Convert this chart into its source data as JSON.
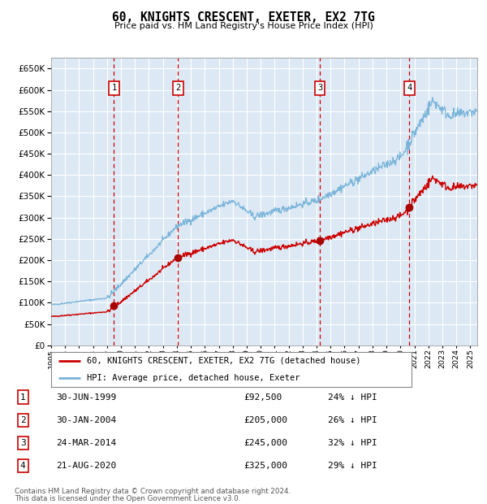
{
  "title": "60, KNIGHTS CRESCENT, EXETER, EX2 7TG",
  "subtitle": "Price paid vs. HM Land Registry's House Price Index (HPI)",
  "background_color": "#ffffff",
  "plot_bg_color": "#dce9f5",
  "grid_color": "#ffffff",
  "hpi_color": "#7ab4d8",
  "price_color": "#cc0000",
  "sale_marker_color": "#aa0000",
  "dashed_line_color": "#cc0000",
  "transactions": [
    {
      "num": 1,
      "date_str": "30-JUN-1999",
      "price": 92500,
      "pct": "24%",
      "year": 1999.5
    },
    {
      "num": 2,
      "date_str": "30-JAN-2004",
      "price": 205000,
      "pct": "26%",
      "year": 2004.08
    },
    {
      "num": 3,
      "date_str": "24-MAR-2014",
      "price": 245000,
      "pct": "32%",
      "year": 2014.23
    },
    {
      "num": 4,
      "date_str": "21-AUG-2020",
      "price": 325000,
      "pct": "29%",
      "year": 2020.64
    }
  ],
  "legend_label_price": "60, KNIGHTS CRESCENT, EXETER, EX2 7TG (detached house)",
  "legend_label_hpi": "HPI: Average price, detached house, Exeter",
  "footer_line1": "Contains HM Land Registry data © Crown copyright and database right 2024.",
  "footer_line2": "This data is licensed under the Open Government Licence v3.0.",
  "ylim": [
    0,
    675000
  ],
  "xlim_start": 1995.0,
  "xlim_end": 2025.5,
  "yticks": [
    0,
    50000,
    100000,
    150000,
    200000,
    250000,
    300000,
    350000,
    400000,
    450000,
    500000,
    550000,
    600000,
    650000
  ],
  "xtick_years": [
    1995,
    1996,
    1997,
    1998,
    1999,
    2000,
    2001,
    2002,
    2003,
    2004,
    2005,
    2006,
    2007,
    2008,
    2009,
    2010,
    2011,
    2012,
    2013,
    2014,
    2015,
    2016,
    2017,
    2018,
    2019,
    2020,
    2021,
    2022,
    2023,
    2024,
    2025
  ]
}
